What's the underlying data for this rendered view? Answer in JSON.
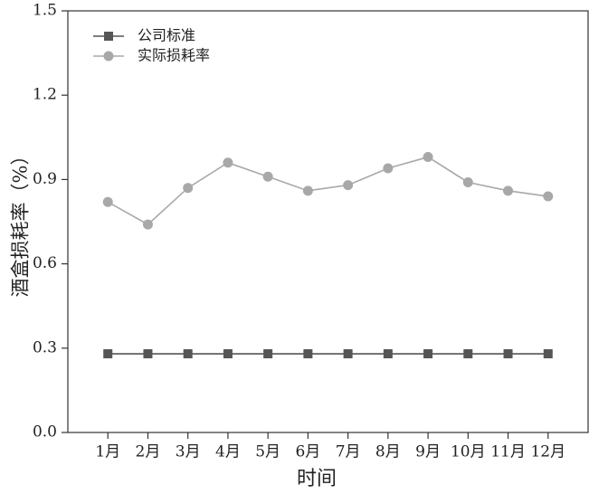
{
  "chart_data": {
    "type": "line",
    "xlabel": "时间",
    "ylabel": "酒盒损耗率（%）",
    "categories": [
      "1月",
      "2月",
      "3月",
      "4月",
      "5月",
      "6月",
      "7月",
      "8月",
      "9月",
      "10月",
      "11月",
      "12月"
    ],
    "series": [
      {
        "name": "公司标准",
        "color": "#555555",
        "marker": "square",
        "values": [
          0.28,
          0.28,
          0.28,
          0.28,
          0.28,
          0.28,
          0.28,
          0.28,
          0.28,
          0.28,
          0.28,
          0.28
        ]
      },
      {
        "name": "实际损耗率",
        "color": "#a8a8a8",
        "marker": "circle",
        "values": [
          0.82,
          0.74,
          0.87,
          0.96,
          0.91,
          0.86,
          0.88,
          0.94,
          0.98,
          0.89,
          0.86,
          0.84
        ]
      }
    ],
    "ylim": [
      0,
      1.5
    ],
    "yticks": [
      {
        "value": 0,
        "label": "0.0"
      },
      0.3,
      0.6,
      0.9,
      1.2,
      1.5
    ],
    "legend": "upper-left"
  }
}
